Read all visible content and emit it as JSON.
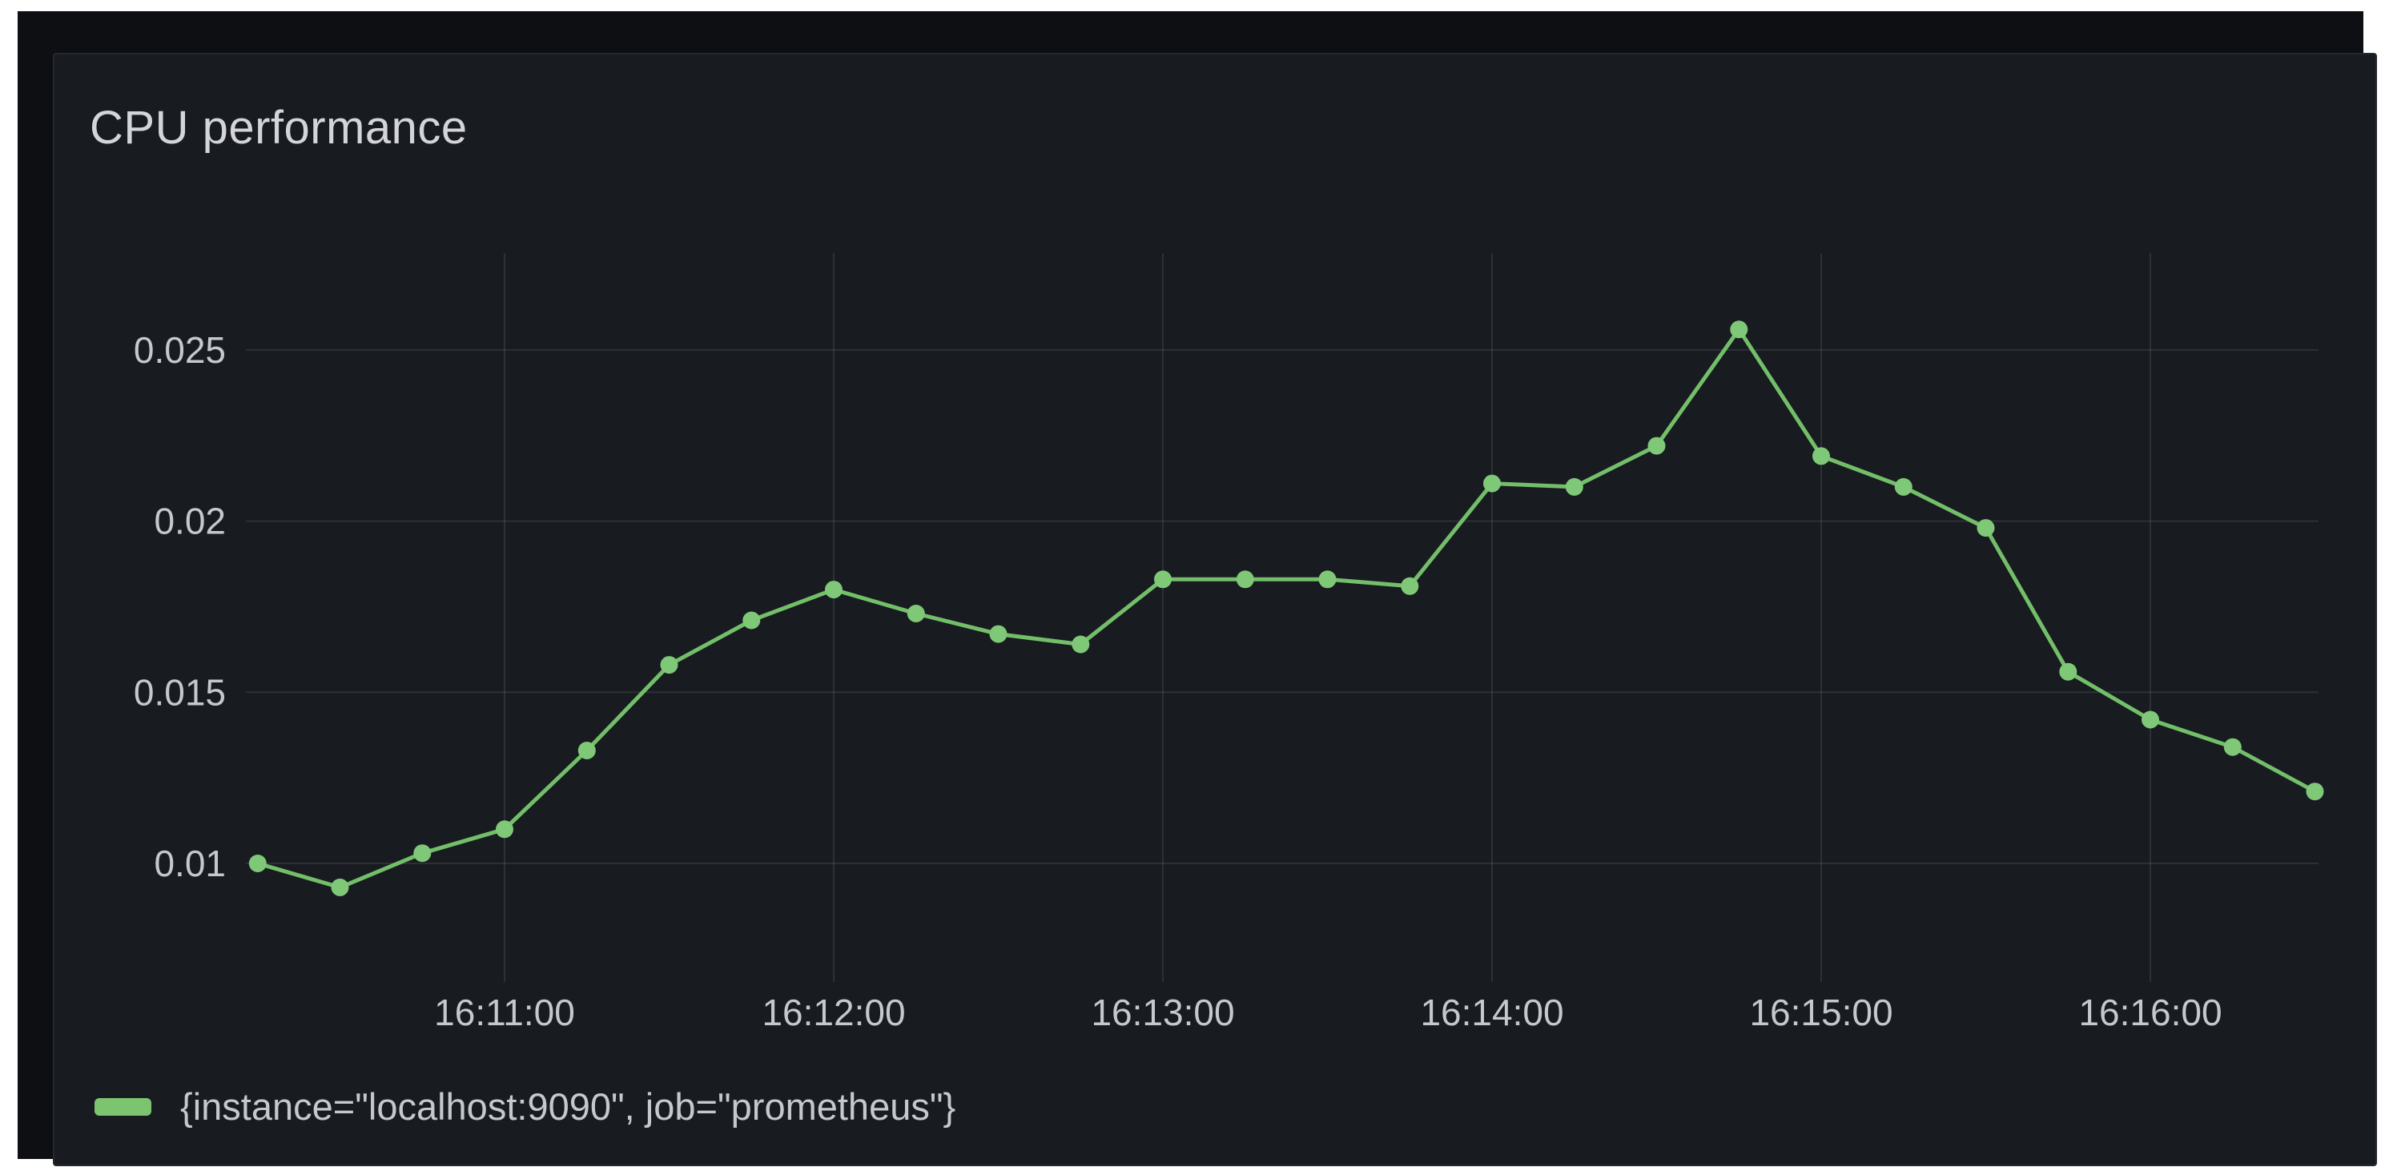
{
  "panel": {
    "title": "CPU performance",
    "legend": {
      "series_label": "{instance=\"localhost:9090\", job=\"prometheus\"}"
    }
  },
  "colors": {
    "frame": "#ffffff",
    "outer_bg": "#0d0f13",
    "panel_bg": "#181b20",
    "panel_border": "#25282d",
    "title_text": "#d4d5da",
    "tick_text": "#c6c8ce",
    "grid": "rgba(204,204,220,0.12)",
    "series_green": "#73bf69",
    "point_green": "#7fc878",
    "legend_swatch": "#7cc46f"
  },
  "chart_data": {
    "type": "line",
    "title": "CPU performance",
    "xlabel": "",
    "ylabel": "",
    "grid": true,
    "legend_position": "bottom-left",
    "x_interval_seconds": 15,
    "xlim": [
      "16:10:13",
      "16:16:34"
    ],
    "ylim": [
      0.0066,
      0.0279
    ],
    "x_tick_labels": [
      "16:11:00",
      "16:12:00",
      "16:13:00",
      "16:14:00",
      "16:15:00",
      "16:16:00"
    ],
    "y_tick_labels": [
      "0.01",
      "0.015",
      "0.02",
      "0.025"
    ],
    "y_tick_values": [
      0.01,
      0.015,
      0.02,
      0.025
    ],
    "series": [
      {
        "name": "{instance=\"localhost:9090\", job=\"prometheus\"}",
        "color": "#73bf69",
        "point_color": "#7fc878",
        "x": [
          "16:10:15",
          "16:10:30",
          "16:10:45",
          "16:11:00",
          "16:11:15",
          "16:11:30",
          "16:11:45",
          "16:12:00",
          "16:12:15",
          "16:12:30",
          "16:12:45",
          "16:13:00",
          "16:13:15",
          "16:13:30",
          "16:13:45",
          "16:14:00",
          "16:14:15",
          "16:14:30",
          "16:14:45",
          "16:15:00",
          "16:15:15",
          "16:15:30",
          "16:15:45",
          "16:16:00",
          "16:16:15",
          "16:16:30"
        ],
        "values": [
          0.01,
          0.0093,
          0.0103,
          0.011,
          0.0133,
          0.0158,
          0.0171,
          0.018,
          0.0173,
          0.0167,
          0.0164,
          0.0183,
          0.0183,
          0.0183,
          0.0181,
          0.0211,
          0.021,
          0.0222,
          0.0256,
          0.0219,
          0.021,
          0.0198,
          0.0156,
          0.0142,
          0.0134,
          0.0121
        ]
      }
    ]
  }
}
